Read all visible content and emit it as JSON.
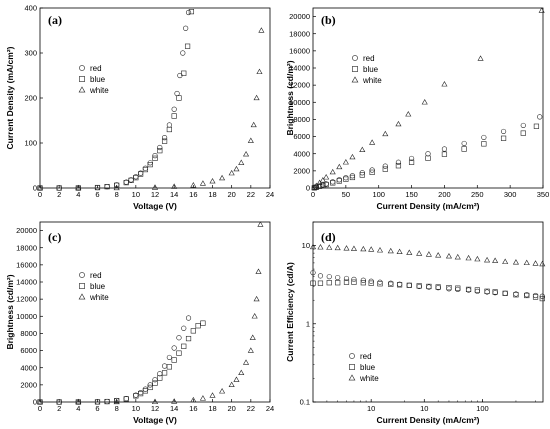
{
  "chart_data": [
    {
      "type": "scatter",
      "panel_label": "(a)",
      "xlabel": "Voltage (V)",
      "ylabel": "Current Density (mA/cm²)",
      "xlim": [
        0,
        24
      ],
      "ylim": [
        0,
        400
      ],
      "xticks": [
        "0",
        "2",
        "4",
        "6",
        "8",
        "10",
        "12",
        "14",
        "16",
        "18",
        "20",
        "22",
        "24"
      ],
      "yticks": [
        "0",
        "100",
        "200",
        "300",
        "400"
      ],
      "xscale": "linear",
      "yscale": "linear",
      "legend_position": "upper-left",
      "series": [
        {
          "name": "red",
          "marker": "circle",
          "x": [
            0,
            2,
            4,
            6,
            7,
            8,
            9,
            9.5,
            10,
            10.5,
            11,
            11.5,
            12,
            12.5,
            13,
            13.5,
            14,
            14.3,
            14.6,
            14.9,
            15.2,
            15.5
          ],
          "y": [
            0,
            0,
            0,
            1,
            3,
            7,
            13,
            18,
            25,
            33,
            44,
            56,
            72,
            90,
            112,
            140,
            175,
            210,
            250,
            300,
            355,
            390
          ]
        },
        {
          "name": "blue",
          "marker": "square",
          "x": [
            0,
            2,
            4,
            6,
            7,
            8,
            9,
            9.5,
            10,
            10.5,
            11,
            11.5,
            12,
            12.5,
            13,
            13.5,
            14,
            14.5,
            15,
            15.4,
            15.8
          ],
          "y": [
            0,
            0,
            0,
            1,
            3,
            6,
            12,
            17,
            23,
            31,
            41,
            52,
            66,
            83,
            104,
            130,
            160,
            200,
            255,
            315,
            392
          ]
        },
        {
          "name": "white",
          "marker": "triangle",
          "x": [
            0,
            4,
            8,
            12,
            14,
            16,
            17,
            18,
            19,
            20,
            20.5,
            21,
            21.5,
            22,
            22.3,
            22.6,
            22.9,
            23.1
          ],
          "y": [
            0,
            0,
            0,
            1,
            3,
            6,
            10,
            15,
            22,
            33,
            42,
            56,
            75,
            105,
            140,
            200,
            258,
            350
          ]
        }
      ]
    },
    {
      "type": "scatter",
      "panel_label": "(b)",
      "xlabel": "Current Density (mA/cm²)",
      "ylabel": "Brightness (cd/m²)",
      "xlim": [
        0,
        350
      ],
      "ylim": [
        0,
        21000
      ],
      "xticks": [
        "0",
        "50",
        "100",
        "150",
        "200",
        "250",
        "300",
        "350"
      ],
      "yticks": [
        "0",
        "2000",
        "4000",
        "6000",
        "8000",
        "10000",
        "12000",
        "14000",
        "16000",
        "18000",
        "20000"
      ],
      "xscale": "linear",
      "yscale": "linear",
      "legend_position": "upper-left",
      "series": [
        {
          "name": "red",
          "marker": "circle",
          "x": [
            2,
            5,
            10,
            15,
            20,
            30,
            40,
            50,
            60,
            75,
            90,
            110,
            130,
            150,
            175,
            200,
            230,
            260,
            290,
            320,
            345
          ],
          "y": [
            30,
            100,
            240,
            360,
            480,
            720,
            960,
            1200,
            1430,
            1780,
            2100,
            2550,
            3000,
            3450,
            4000,
            4550,
            5200,
            5900,
            6600,
            7300,
            8300
          ]
        },
        {
          "name": "blue",
          "marker": "square",
          "x": [
            2,
            5,
            10,
            15,
            20,
            30,
            40,
            50,
            60,
            75,
            90,
            110,
            130,
            150,
            175,
            200,
            230,
            260,
            290,
            320,
            340
          ],
          "y": [
            20,
            80,
            200,
            300,
            400,
            600,
            820,
            1030,
            1230,
            1520,
            1830,
            2200,
            2600,
            3000,
            3480,
            3950,
            4550,
            5150,
            5800,
            6400,
            7200
          ]
        },
        {
          "name": "white",
          "marker": "triangle",
          "x": [
            2,
            5,
            10,
            15,
            20,
            30,
            40,
            50,
            60,
            75,
            90,
            110,
            130,
            145,
            170,
            200,
            255,
            348
          ],
          "y": [
            60,
            250,
            600,
            900,
            1250,
            1850,
            2450,
            3000,
            3600,
            4450,
            5300,
            6300,
            7450,
            8600,
            10000,
            12100,
            15100,
            20700
          ]
        }
      ]
    },
    {
      "type": "scatter",
      "panel_label": "(c)",
      "xlabel": "Voltage (V)",
      "ylabel": "Brightness (cd/m²)",
      "xlim": [
        0,
        24
      ],
      "ylim": [
        0,
        21000
      ],
      "xticks": [
        "0",
        "2",
        "4",
        "6",
        "8",
        "10",
        "12",
        "14",
        "16",
        "18",
        "20",
        "22",
        "24"
      ],
      "yticks": [
        "0",
        "2000",
        "4000",
        "6000",
        "8000",
        "10000",
        "12000",
        "14000",
        "16000",
        "18000",
        "20000"
      ],
      "xscale": "linear",
      "yscale": "linear",
      "legend_position": "upper-left",
      "series": [
        {
          "name": "red",
          "marker": "circle",
          "x": [
            0,
            2,
            4,
            6,
            7,
            8,
            9,
            10,
            10.5,
            11,
            11.5,
            12,
            12.5,
            13,
            13.5,
            14,
            14.5,
            15,
            15.5
          ],
          "y": [
            0,
            0,
            0,
            10,
            60,
            180,
            400,
            800,
            1100,
            1500,
            2000,
            2600,
            3300,
            4200,
            5200,
            6300,
            7500,
            8600,
            9800
          ]
        },
        {
          "name": "blue",
          "marker": "square",
          "x": [
            0,
            2,
            4,
            6,
            7,
            8,
            9,
            10,
            10.5,
            11,
            11.5,
            12,
            12.5,
            13,
            13.5,
            14,
            14.5,
            15,
            15.5,
            16,
            16.5,
            17
          ],
          "y": [
            0,
            0,
            0,
            10,
            50,
            160,
            360,
            720,
            980,
            1300,
            1700,
            2200,
            2800,
            3400,
            4100,
            4900,
            5700,
            6500,
            7400,
            8300,
            8900,
            9200
          ]
        },
        {
          "name": "white",
          "marker": "triangle",
          "x": [
            0,
            4,
            8,
            12,
            14,
            16,
            17,
            18,
            19,
            20,
            20.5,
            21,
            21.5,
            22,
            22.2,
            22.4,
            22.6,
            22.8,
            23
          ],
          "y": [
            0,
            0,
            0,
            10,
            60,
            220,
            420,
            760,
            1250,
            2000,
            2600,
            3400,
            4600,
            6000,
            7500,
            10000,
            12000,
            15200,
            20700
          ]
        }
      ]
    },
    {
      "type": "scatter",
      "panel_label": "(d)",
      "xlabel": "Current Density (mA/cm²)",
      "ylabel": "Current Efficiency (cd/A)",
      "xlim": [
        3,
        350
      ],
      "ylim": [
        0.1,
        20
      ],
      "xticks": [
        "10",
        "10",
        "100"
      ],
      "yticks": [
        "0.1",
        "1",
        "10"
      ],
      "xscale": "log",
      "yscale": "log",
      "legend_position": "lower-left",
      "series": [
        {
          "name": "red",
          "marker": "circle",
          "x": [
            3,
            3.5,
            4.2,
            5,
            6,
            7,
            8.5,
            10,
            12,
            15,
            18,
            22,
            27,
            33,
            40,
            50,
            60,
            75,
            90,
            110,
            130,
            160,
            200,
            250,
            300,
            345
          ],
          "y": [
            4.5,
            4.1,
            4.0,
            3.9,
            3.8,
            3.7,
            3.6,
            3.5,
            3.4,
            3.3,
            3.2,
            3.1,
            3.0,
            2.95,
            2.9,
            2.8,
            2.75,
            2.7,
            2.6,
            2.55,
            2.5,
            2.45,
            2.4,
            2.35,
            2.3,
            2.25
          ]
        },
        {
          "name": "blue",
          "marker": "square",
          "x": [
            3,
            3.5,
            4.2,
            5,
            6,
            7,
            8.5,
            10,
            12,
            15,
            18,
            22,
            27,
            33,
            40,
            50,
            60,
            75,
            90,
            110,
            130,
            160,
            200,
            250,
            300,
            345
          ],
          "y": [
            3.3,
            3.3,
            3.35,
            3.35,
            3.4,
            3.4,
            3.35,
            3.3,
            3.25,
            3.2,
            3.15,
            3.1,
            3.05,
            3.0,
            2.95,
            2.9,
            2.85,
            2.75,
            2.7,
            2.6,
            2.55,
            2.45,
            2.35,
            2.3,
            2.2,
            2.1
          ]
        },
        {
          "name": "white",
          "marker": "triangle",
          "x": [
            3,
            3.5,
            4.2,
            5,
            6,
            7,
            8.5,
            10,
            12,
            15,
            18,
            22,
            27,
            33,
            40,
            50,
            60,
            75,
            90,
            110,
            130,
            160,
            200,
            250,
            300,
            345
          ],
          "y": [
            9.6,
            9.5,
            9.4,
            9.3,
            9.2,
            9.1,
            9.0,
            8.9,
            8.7,
            8.5,
            8.3,
            8.1,
            7.9,
            7.7,
            7.5,
            7.3,
            7.1,
            6.9,
            6.7,
            6.5,
            6.4,
            6.2,
            6.1,
            6.0,
            5.9,
            5.8
          ]
        }
      ]
    }
  ]
}
